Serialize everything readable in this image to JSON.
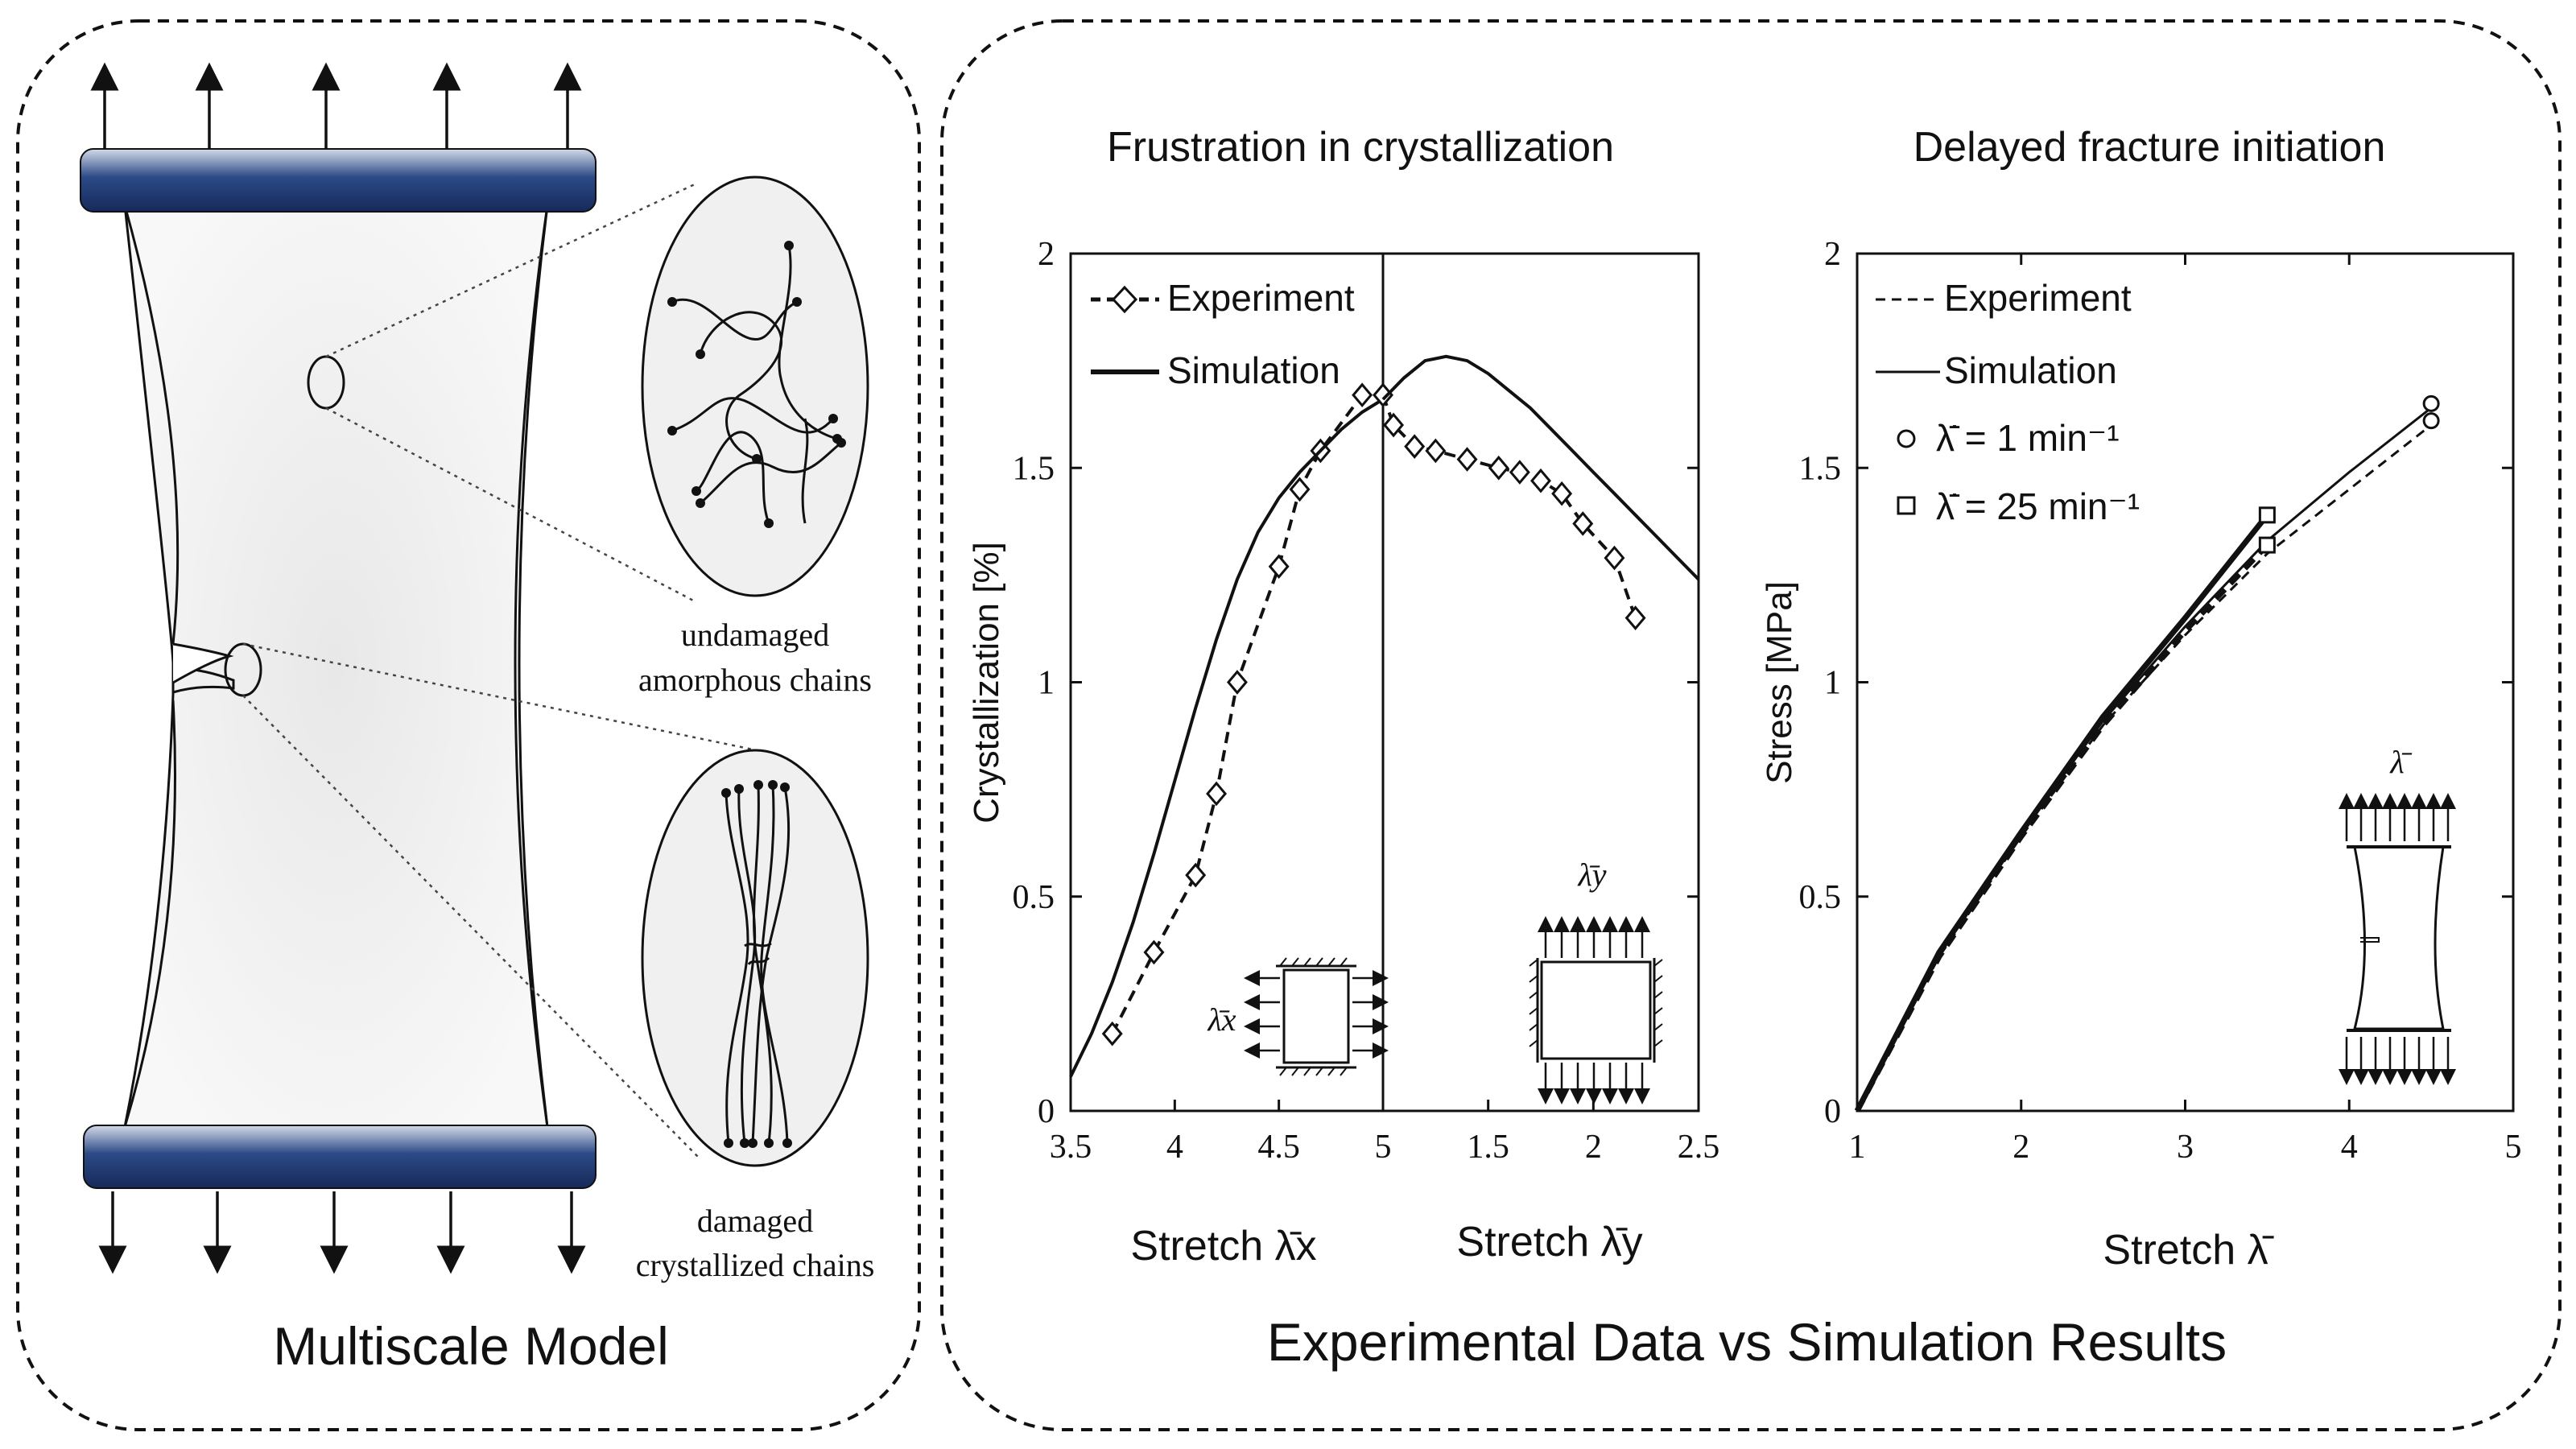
{
  "left_panel": {
    "title": "Multiscale Model",
    "undamaged_label_1": "undamaged",
    "undamaged_label_2": "amorphous chains",
    "damaged_label_1": "damaged",
    "damaged_label_2": "crystallized chains"
  },
  "right_panel": {
    "title": "Experimental Data vs Simulation Results"
  },
  "chart1": {
    "title": "Frustration in crystallization",
    "ylabel": "Crystallization [%]",
    "xlabel_left": "Stretch λ̄x",
    "xlabel_right": "Stretch λ̄y",
    "yticks": [
      "0",
      "0.5",
      "1",
      "1.5",
      "2"
    ],
    "xticks": [
      "3.5",
      "4",
      "4.5",
      "5",
      "1.5",
      "2",
      "2.5"
    ],
    "legend_experiment": "Experiment",
    "legend_simulation": "Simulation",
    "inset_left_label": "λ̄x",
    "inset_right_label": "λ̄y"
  },
  "chart2": {
    "title": "Delayed fracture initiation",
    "ylabel": "Stress [MPa]",
    "xlabel": "Stretch λ̄",
    "yticks": [
      "0",
      "0.5",
      "1",
      "1.5",
      "2"
    ],
    "xticks": [
      "1",
      "2",
      "3",
      "4",
      "5"
    ],
    "legend_experiment": "Experiment",
    "legend_simulation": "Simulation",
    "legend_rate1": "λ̄̇ = 1 min⁻¹",
    "legend_rate2": "λ̄̇ = 25 min⁻¹",
    "inset_label": "λ̄"
  },
  "chart_data": [
    {
      "type": "line",
      "title": "Frustration in crystallization",
      "ylabel": "Crystallization [%]",
      "ylim": [
        0,
        2
      ],
      "panels": [
        {
          "xlabel": "Stretch λ̄x",
          "xlim": [
            3.5,
            5
          ],
          "series": [
            {
              "name": "Experiment",
              "x": [
                3.7,
                3.9,
                4.1,
                4.2,
                4.3,
                4.5,
                4.6,
                4.7,
                4.9
              ],
              "y": [
                0.18,
                0.37,
                0.55,
                0.74,
                1.0,
                1.27,
                1.45,
                1.54,
                1.67
              ]
            },
            {
              "name": "Simulation",
              "x": [
                3.5,
                3.6,
                3.7,
                3.8,
                3.9,
                4.0,
                4.1,
                4.2,
                4.3,
                4.4,
                4.5,
                4.6,
                4.7,
                4.8,
                4.9,
                5.0
              ],
              "y": [
                0.08,
                0.18,
                0.3,
                0.44,
                0.6,
                0.77,
                0.94,
                1.1,
                1.24,
                1.35,
                1.43,
                1.49,
                1.54,
                1.59,
                1.63,
                1.66
              ]
            }
          ]
        },
        {
          "xlabel": "Stretch λ̄y",
          "xlim": [
            1,
            2.5
          ],
          "series": [
            {
              "name": "Experiment",
              "x": [
                1.0,
                1.05,
                1.15,
                1.25,
                1.4,
                1.55,
                1.65,
                1.75,
                1.85,
                1.95,
                2.1,
                2.2
              ],
              "y": [
                1.67,
                1.6,
                1.55,
                1.54,
                1.52,
                1.5,
                1.49,
                1.47,
                1.44,
                1.37,
                1.29,
                1.15
              ]
            },
            {
              "name": "Simulation",
              "x": [
                1.0,
                1.1,
                1.2,
                1.3,
                1.4,
                1.5,
                1.6,
                1.7,
                1.8,
                1.9,
                2.0,
                2.1,
                2.2,
                2.3,
                2.4,
                2.5
              ],
              "y": [
                1.66,
                1.71,
                1.75,
                1.76,
                1.75,
                1.72,
                1.68,
                1.64,
                1.59,
                1.54,
                1.49,
                1.44,
                1.39,
                1.34,
                1.29,
                1.24
              ]
            }
          ]
        }
      ]
    },
    {
      "type": "line",
      "title": "Delayed fracture initiation",
      "xlabel": "Stretch λ̄",
      "ylabel": "Stress [MPa]",
      "xlim": [
        1,
        5
      ],
      "ylim": [
        0,
        2
      ],
      "series": [
        {
          "name": "Experiment (λ̄̇ = 1 min⁻¹)",
          "x": [
            1.0,
            1.5,
            2.0,
            2.5,
            3.0,
            3.5,
            4.0,
            4.5
          ],
          "y": [
            0.0,
            0.36,
            0.64,
            0.9,
            1.11,
            1.3,
            1.45,
            1.6
          ]
        },
        {
          "name": "Simulation (λ̄̇ = 1 min⁻¹)",
          "x": [
            1.0,
            1.5,
            2.0,
            2.5,
            3.0,
            3.5,
            4.0,
            4.5
          ],
          "y": [
            0.0,
            0.37,
            0.65,
            0.91,
            1.13,
            1.33,
            1.49,
            1.64
          ]
        },
        {
          "name": "Experiment (λ̄̇ = 25 min⁻¹)",
          "x": [
            1.0,
            1.5,
            2.0,
            2.5,
            3.0,
            3.5
          ],
          "y": [
            0.0,
            0.36,
            0.64,
            0.9,
            1.12,
            1.32
          ]
        },
        {
          "name": "Simulation (λ̄̇ = 25 min⁻¹)",
          "x": [
            1.0,
            1.5,
            2.0,
            2.5,
            3.0,
            3.5
          ],
          "y": [
            0.0,
            0.37,
            0.65,
            0.92,
            1.15,
            1.39
          ]
        },
        {
          "name": "Failure λ̄̇ = 1 min⁻¹",
          "x": [
            4.5,
            4.5
          ],
          "y": [
            1.65,
            1.61
          ]
        },
        {
          "name": "Failure λ̄̇ = 25 min⁻¹",
          "x": [
            3.5,
            3.5
          ],
          "y": [
            1.39,
            1.32
          ]
        }
      ]
    }
  ]
}
